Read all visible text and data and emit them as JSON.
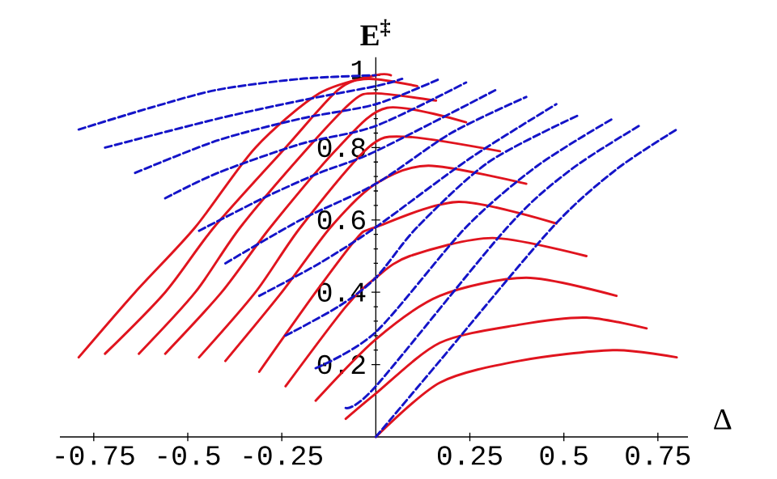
{
  "chart_data": {
    "type": "line",
    "xlabel": "Δ",
    "ylabel": "E$^{‡}$",
    "xlim": [
      -0.84,
      0.83
    ],
    "ylim": [
      0,
      1.05
    ],
    "xticks": [
      -0.75,
      -0.5,
      -0.25,
      0.25,
      0.5,
      0.75
    ],
    "yticks": [
      0.2,
      0.4,
      0.6,
      0.8,
      1
    ],
    "marker": "none",
    "series": [
      {
        "color": "#e0141e",
        "line_style": "solid",
        "x": [
          -0.79,
          -0.64,
          -0.48,
          -0.32,
          -0.15,
          0.0,
          0.04
        ],
        "values": [
          0.22,
          0.4,
          0.58,
          0.8,
          0.95,
          1.0,
          1.0
        ]
      },
      {
        "color": "#e0141e",
        "line_style": "solid",
        "x": [
          -0.72,
          -0.56,
          -0.43,
          -0.24,
          -0.1,
          -0.02,
          0.11
        ],
        "values": [
          0.23,
          0.4,
          0.58,
          0.8,
          0.96,
          0.99,
          0.97
        ]
      },
      {
        "color": "#e0141e",
        "line_style": "solid",
        "x": [
          -0.63,
          -0.48,
          -0.36,
          -0.18,
          -0.06,
          0.0,
          0.16
        ],
        "values": [
          0.23,
          0.4,
          0.58,
          0.8,
          0.93,
          0.95,
          0.93
        ]
      },
      {
        "color": "#e0141e",
        "line_style": "solid",
        "x": [
          -0.56,
          -0.41,
          -0.28,
          -0.1,
          0.03,
          0.24
        ],
        "values": [
          0.23,
          0.4,
          0.58,
          0.8,
          0.91,
          0.87
        ]
      },
      {
        "color": "#e0141e",
        "line_style": "solid",
        "x": [
          -0.47,
          -0.32,
          -0.2,
          -0.02,
          0.08,
          0.33
        ],
        "values": [
          0.22,
          0.4,
          0.58,
          0.8,
          0.83,
          0.79
        ]
      },
      {
        "color": "#e0141e",
        "line_style": "solid",
        "x": [
          -0.4,
          -0.25,
          -0.12,
          0.0,
          0.14,
          0.4
        ],
        "values": [
          0.21,
          0.4,
          0.58,
          0.7,
          0.75,
          0.7
        ]
      },
      {
        "color": "#e0141e",
        "line_style": "solid",
        "x": [
          -0.31,
          -0.16,
          -0.05,
          0.0,
          0.22,
          0.48
        ],
        "values": [
          0.18,
          0.4,
          0.55,
          0.58,
          0.65,
          0.59
        ]
      },
      {
        "color": "#e0141e",
        "line_style": "solid",
        "x": [
          -0.24,
          -0.08,
          0.0,
          0.09,
          0.31,
          0.56
        ],
        "values": [
          0.14,
          0.36,
          0.44,
          0.5,
          0.55,
          0.5
        ]
      },
      {
        "color": "#e0141e",
        "line_style": "solid",
        "x": [
          -0.16,
          0.0,
          0.17,
          0.4,
          0.64
        ],
        "values": [
          0.1,
          0.27,
          0.39,
          0.44,
          0.39
        ]
      },
      {
        "color": "#e0141e",
        "line_style": "solid",
        "x": [
          -0.08,
          0.0,
          0.17,
          0.38,
          0.56,
          0.72
        ],
        "values": [
          0.05,
          0.12,
          0.26,
          0.31,
          0.33,
          0.3
        ]
      },
      {
        "color": "#e0141e",
        "line_style": "solid",
        "x": [
          0.0,
          0.17,
          0.38,
          0.63,
          0.8
        ],
        "values": [
          0.0,
          0.15,
          0.21,
          0.24,
          0.22
        ]
      },
      {
        "color": "#1414c8",
        "line_style": "dashed",
        "x": [
          -0.79,
          -0.6,
          -0.42,
          -0.2,
          0.0
        ],
        "values": [
          0.85,
          0.91,
          0.96,
          0.99,
          1.0
        ]
      },
      {
        "color": "#1414c8",
        "line_style": "dashed",
        "x": [
          -0.72,
          -0.42,
          -0.2,
          0.0,
          0.07
        ],
        "values": [
          0.8,
          0.88,
          0.93,
          0.97,
          0.99
        ]
      },
      {
        "color": "#1414c8",
        "line_style": "dashed",
        "x": [
          -0.64,
          -0.42,
          -0.2,
          0.0,
          0.17
        ],
        "values": [
          0.73,
          0.82,
          0.88,
          0.92,
          0.99
        ]
      },
      {
        "color": "#1414c8",
        "line_style": "dashed",
        "x": [
          -0.56,
          -0.42,
          -0.2,
          0.0,
          0.24
        ],
        "values": [
          0.66,
          0.73,
          0.81,
          0.86,
          0.98
        ]
      },
      {
        "color": "#1414c8",
        "line_style": "dashed",
        "x": [
          -0.47,
          -0.3,
          -0.15,
          0.0,
          0.32
        ],
        "values": [
          0.57,
          0.66,
          0.73,
          0.79,
          0.96
        ]
      },
      {
        "color": "#1414c8",
        "line_style": "dashed",
        "x": [
          -0.4,
          -0.2,
          0.0,
          0.2,
          0.4
        ],
        "values": [
          0.48,
          0.6,
          0.7,
          0.84,
          0.94
        ]
      },
      {
        "color": "#1414c8",
        "line_style": "dashed",
        "x": [
          -0.31,
          -0.15,
          0.0,
          0.25,
          0.48
        ],
        "values": [
          0.39,
          0.48,
          0.58,
          0.77,
          0.92
        ]
      },
      {
        "color": "#1414c8",
        "line_style": "dashed",
        "x": [
          -0.24,
          -0.1,
          0.0,
          0.11,
          0.3,
          0.54
        ],
        "values": [
          0.28,
          0.36,
          0.44,
          0.58,
          0.76,
          0.89
        ]
      },
      {
        "color": "#1414c8",
        "line_style": "dashed",
        "x": [
          -0.16,
          0.0,
          0.24,
          0.43,
          0.63
        ],
        "values": [
          0.19,
          0.29,
          0.58,
          0.75,
          0.88
        ]
      },
      {
        "color": "#1414c8",
        "line_style": "dashed",
        "x": [
          -0.08,
          0.0,
          0.35,
          0.52,
          0.7
        ],
        "values": [
          0.08,
          0.14,
          0.58,
          0.74,
          0.86
        ]
      },
      {
        "color": "#1414c8",
        "line_style": "dashed",
        "x": [
          0.0,
          0.17,
          0.47,
          0.64,
          0.8
        ],
        "values": [
          0.0,
          0.21,
          0.58,
          0.74,
          0.85
        ]
      }
    ]
  }
}
